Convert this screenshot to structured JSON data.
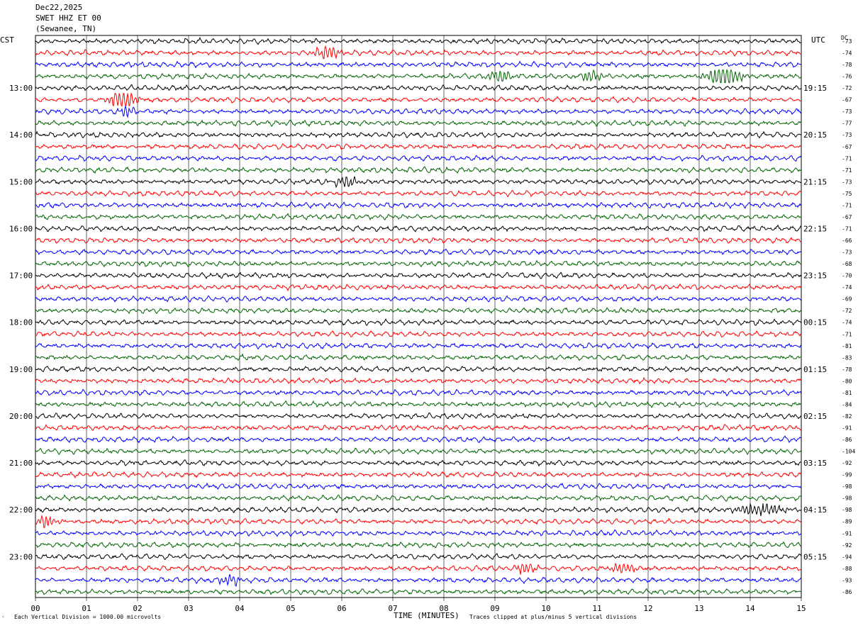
{
  "header": {
    "date": "Dec22,2025",
    "station": "SWET HHZ ET 00",
    "location": "(Sewanee, TN)"
  },
  "labels": {
    "left_tz": "CST",
    "right_tz": "UTC",
    "dc": "DC",
    "xlabel": "TIME (MINUTES)",
    "scale_note": "Each Vertical Division = 1000.00 microvolts",
    "clip_note": "Traces clipped at plus/minus 5 vertical divisions"
  },
  "colors": {
    "trace_cycle": [
      "#000000",
      "#ff0000",
      "#0000ff",
      "#006400"
    ],
    "grid": "#000000"
  },
  "chart_data": {
    "type": "line",
    "title": "",
    "xlabel": "TIME (MINUTES)",
    "x_ticks": [
      "00",
      "01",
      "02",
      "03",
      "04",
      "05",
      "06",
      "07",
      "08",
      "09",
      "10",
      "11",
      "12",
      "13",
      "14",
      "15"
    ],
    "xlim": [
      0,
      15
    ],
    "trace_minutes": 15,
    "trace_count": 48,
    "left_hour_labels": [
      {
        "row": 4,
        "label": "13:00"
      },
      {
        "row": 8,
        "label": "14:00"
      },
      {
        "row": 12,
        "label": "15:00"
      },
      {
        "row": 16,
        "label": "16:00"
      },
      {
        "row": 20,
        "label": "17:00"
      },
      {
        "row": 24,
        "label": "18:00"
      },
      {
        "row": 28,
        "label": "19:00"
      },
      {
        "row": 32,
        "label": "20:00"
      },
      {
        "row": 36,
        "label": "21:00"
      },
      {
        "row": 40,
        "label": "22:00"
      },
      {
        "row": 44,
        "label": "23:00"
      }
    ],
    "right_hour_labels": [
      {
        "row": 4,
        "label": "19:15"
      },
      {
        "row": 8,
        "label": "20:15"
      },
      {
        "row": 12,
        "label": "21:15"
      },
      {
        "row": 16,
        "label": "22:15"
      },
      {
        "row": 20,
        "label": "23:15"
      },
      {
        "row": 24,
        "label": "00:15"
      },
      {
        "row": 28,
        "label": "01:15"
      },
      {
        "row": 32,
        "label": "02:15"
      },
      {
        "row": 36,
        "label": "03:15"
      },
      {
        "row": 40,
        "label": "04:15"
      },
      {
        "row": 44,
        "label": "05:15"
      }
    ],
    "dc_offsets": [
      -73,
      -74,
      -78,
      -76,
      -72,
      -67,
      -73,
      -77,
      -73,
      -67,
      -71,
      -71,
      -73,
      -75,
      -71,
      -67,
      -71,
      -66,
      -73,
      -68,
      -70,
      -74,
      -69,
      -72,
      -74,
      -71,
      -81,
      -83,
      -78,
      -80,
      -81,
      -84,
      -82,
      -91,
      -86,
      -104,
      -92,
      -99,
      -98,
      -98,
      -98,
      -89,
      -91,
      -92,
      -94,
      -88,
      -93,
      -86
    ],
    "events": [
      {
        "row": 1,
        "minute": 5.7,
        "width": 0.35,
        "amp": 2.2
      },
      {
        "row": 3,
        "minute": 9.1,
        "width": 0.4,
        "amp": 1.6
      },
      {
        "row": 3,
        "minute": 10.9,
        "width": 0.35,
        "amp": 1.4
      },
      {
        "row": 3,
        "minute": 13.5,
        "width": 0.45,
        "amp": 3.5
      },
      {
        "row": 5,
        "minute": 1.7,
        "width": 0.35,
        "amp": 3.0
      },
      {
        "row": 6,
        "minute": 1.8,
        "width": 0.2,
        "amp": 1.6
      },
      {
        "row": 12,
        "minute": 6.1,
        "width": 0.3,
        "amp": 1.8
      },
      {
        "row": 40,
        "minute": 14.2,
        "width": 0.7,
        "amp": 1.7
      },
      {
        "row": 41,
        "minute": 0.2,
        "width": 0.3,
        "amp": 1.6
      },
      {
        "row": 45,
        "minute": 9.6,
        "width": 0.3,
        "amp": 1.5
      },
      {
        "row": 45,
        "minute": 11.5,
        "width": 0.4,
        "amp": 1.4
      },
      {
        "row": 46,
        "minute": 3.8,
        "width": 0.3,
        "amp": 1.5
      }
    ]
  }
}
